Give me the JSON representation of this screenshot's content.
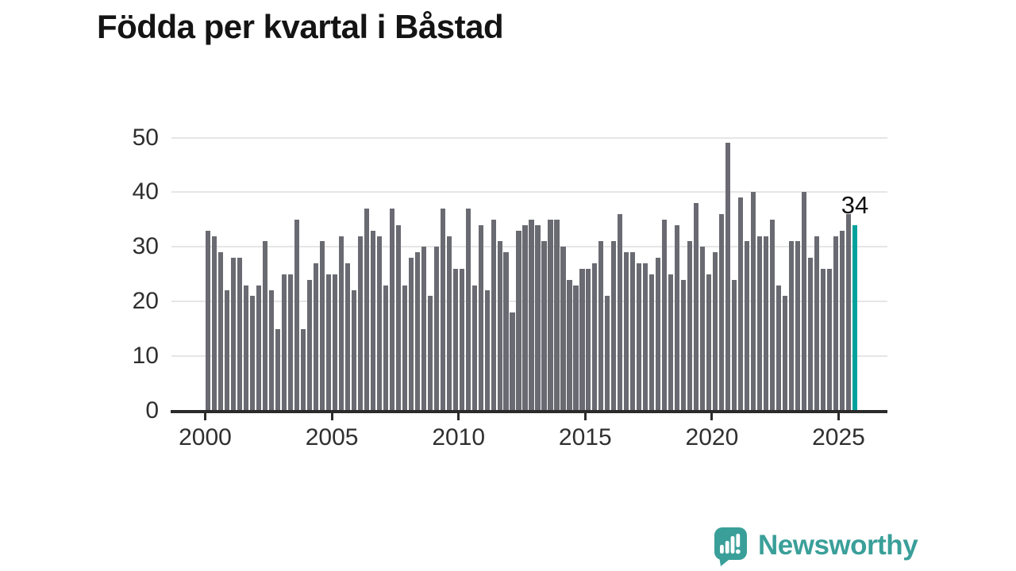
{
  "title": "Födda per kvartal i Båstad",
  "annotation": {
    "last_value_label": "34"
  },
  "chart_data": {
    "type": "bar",
    "title": "Födda per kvartal i Båstad",
    "x_unit": "quarter",
    "start": "2000-Q1",
    "end": "2025-Q3",
    "ylim": [
      0,
      50
    ],
    "y_ticks": [
      0,
      10,
      20,
      30,
      40,
      50
    ],
    "x_label_years": [
      2000,
      2005,
      2010,
      2015,
      2020,
      2025
    ],
    "grid": true,
    "legend": "none",
    "values": [
      33,
      32,
      29,
      22,
      28,
      28,
      23,
      21,
      23,
      31,
      22,
      15,
      25,
      25,
      35,
      15,
      24,
      27,
      31,
      25,
      25,
      32,
      27,
      22,
      32,
      37,
      33,
      32,
      23,
      37,
      34,
      23,
      28,
      29,
      30,
      21,
      30,
      37,
      32,
      26,
      26,
      37,
      23,
      34,
      22,
      35,
      31,
      29,
      18,
      33,
      34,
      35,
      34,
      31,
      35,
      35,
      30,
      24,
      23,
      26,
      26,
      27,
      31,
      21,
      31,
      36,
      29,
      29,
      27,
      27,
      25,
      28,
      35,
      25,
      34,
      24,
      31,
      38,
      30,
      25,
      29,
      36,
      49,
      24,
      39,
      31,
      40,
      32,
      32,
      35,
      23,
      21,
      31,
      31,
      40,
      28,
      32,
      26,
      26,
      32,
      33,
      36,
      34
    ],
    "highlight_last_value": 34,
    "colors": {
      "bar": "#6a6a72",
      "highlight": "#00a29b",
      "grid": "#e6e6e6",
      "axis": "#2b2b2b",
      "tick_text": "#2f2f2f",
      "title_text": "#141414"
    }
  },
  "branding": {
    "name": "Newsworthy",
    "color": "#3a9f99",
    "icon": "newsworthy-speech-bubble-bar-chart-icon"
  }
}
